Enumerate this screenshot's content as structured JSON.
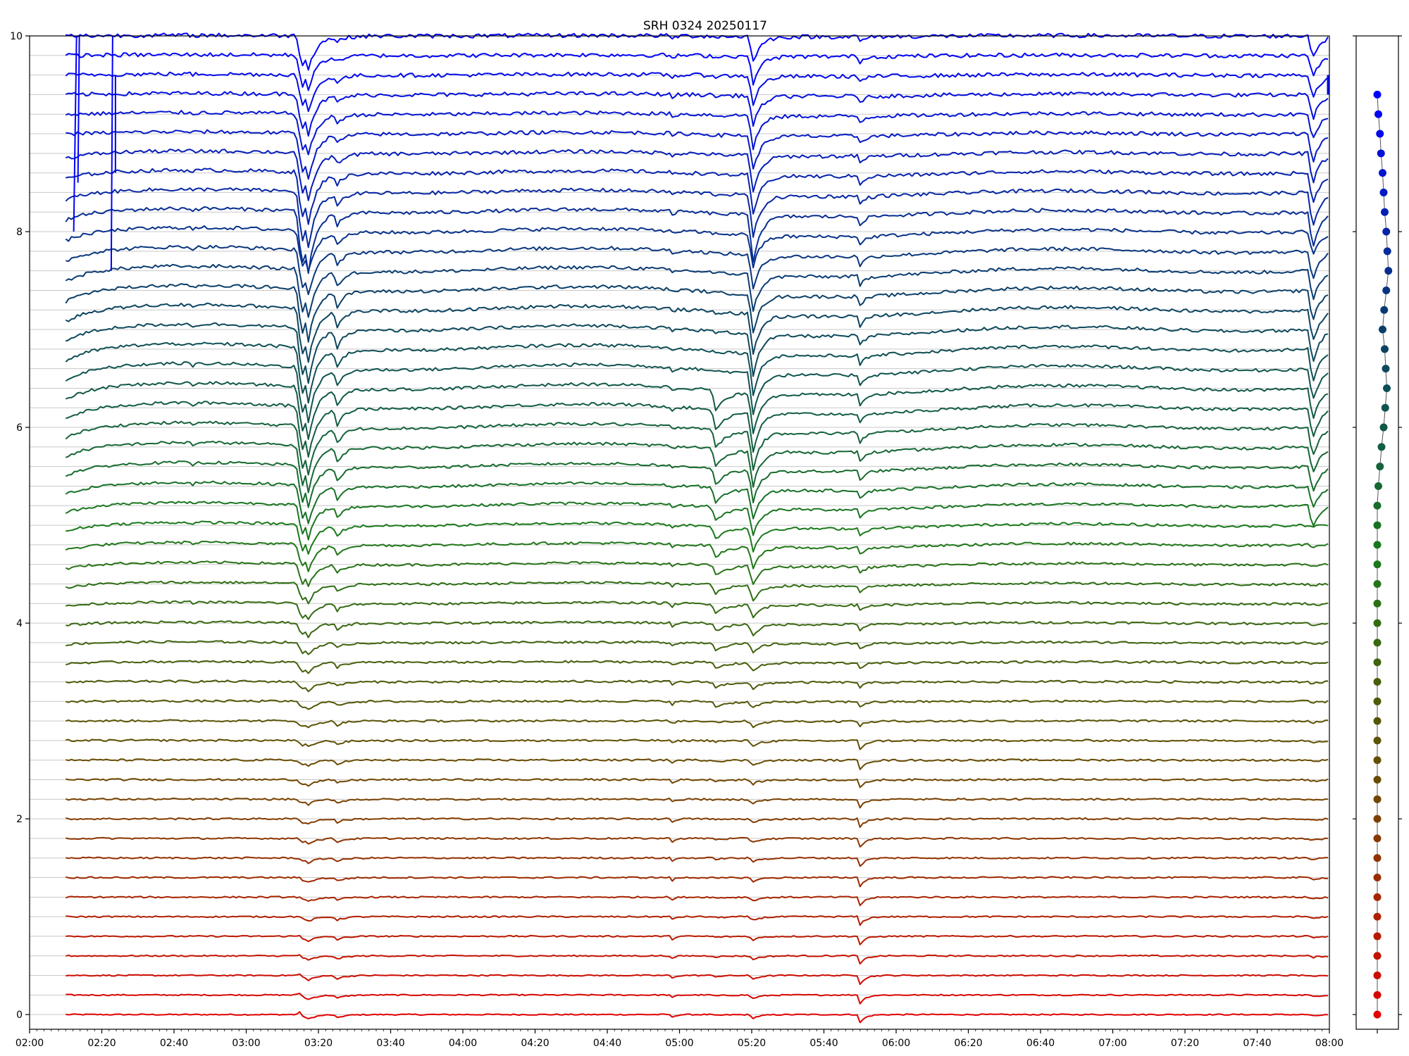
{
  "chart_data": [
    {
      "type": "line",
      "title": "SRH 0324 20250117",
      "xlabel": "",
      "ylabel": "",
      "x_unit": "time (UTC, HH:MM)",
      "xlim": [
        "02:00",
        "08:00"
      ],
      "x_data_range": [
        "02:10",
        "08:00"
      ],
      "ylim": [
        -0.15,
        10
      ],
      "x_ticks": [
        "02:00",
        "02:20",
        "02:40",
        "03:00",
        "03:20",
        "03:40",
        "04:00",
        "04:20",
        "04:40",
        "05:00",
        "05:20",
        "05:40",
        "06:00",
        "06:20",
        "06:40",
        "07:00",
        "07:20",
        "07:40",
        "08:00"
      ],
      "y_ticks": [
        0,
        2,
        4,
        6,
        8,
        10
      ],
      "grid": "horizontal reference line at each trace baseline",
      "legend": "none",
      "series_count": 51,
      "series_offset_step": 0.2,
      "series_offsets_first_last": [
        0,
        10
      ],
      "series_colors_gradient": [
        "#e00000",
        "#6b4a00",
        "#1a7a1a",
        "#0a3d6b",
        "#0000ff"
      ],
      "features": {
        "common_dips_at": [
          "03:15",
          "03:25",
          "05:20",
          "05:50",
          "07:55"
        ],
        "extra_dip_at": "05:10",
        "strongest_dip_amplitude_on_traces": "upper half (offsets ≈ 5.0–9.4)",
        "top_traces_early_spikes_at": [
          "02:13",
          "02:23"
        ],
        "top_trace_final_spike_at": "08:00"
      }
    },
    {
      "type": "scatter",
      "xlabel": "",
      "ylabel": "",
      "ylim": [
        -0.15,
        10
      ],
      "y_values": [
        0,
        0.2,
        0.4,
        0.6,
        0.8,
        1.0,
        1.2,
        1.4,
        1.6,
        1.8,
        2.0,
        2.2,
        2.4,
        2.6,
        2.8,
        3.0,
        3.2,
        3.4,
        3.6,
        3.8,
        4.0,
        4.2,
        4.4,
        4.6,
        4.8,
        5.0,
        5.2,
        5.4,
        5.6,
        5.8,
        6.0,
        6.2,
        6.4,
        6.6,
        6.8,
        7.0,
        7.2,
        7.4,
        7.6,
        7.8,
        8.0,
        8.2,
        8.4,
        8.6,
        8.8,
        9.0,
        9.2,
        9.4
      ],
      "x_values": [
        0,
        0,
        0,
        0,
        0,
        0,
        0,
        0,
        0,
        0,
        0,
        0,
        0,
        0,
        0,
        0,
        0,
        0,
        0,
        0,
        0,
        0,
        0,
        0,
        0,
        0,
        0,
        0.02,
        0.05,
        0.08,
        0.12,
        0.15,
        0.18,
        0.16,
        0.14,
        0.1,
        0.13,
        0.17,
        0.21,
        0.19,
        0.17,
        0.14,
        0.12,
        0.1,
        0.07,
        0.05,
        0.02,
        0
      ],
      "xlim": [
        -0.4,
        0.4
      ],
      "marker": "filled circle connected by thin gray line",
      "colors": "match the corresponding trace colours (red at bottom to blue at top)"
    }
  ]
}
